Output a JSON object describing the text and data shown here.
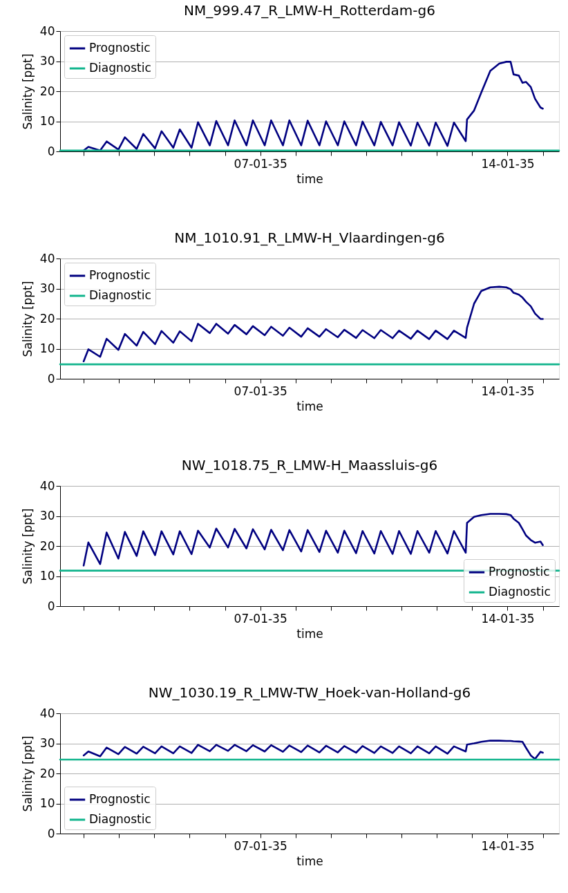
{
  "chart_data": [
    {
      "type": "line",
      "title": "NM_999.47_R_LMW-H_Rotterdam-g6",
      "xlabel": "time",
      "ylabel": "Salinity [ppt]",
      "xlim": [
        "2035-01-01T08:00",
        "2035-01-15T11:00"
      ],
      "xticks": [
        {
          "value": "2035-01-02",
          "label": null
        },
        {
          "value": "2035-01-03",
          "label": null
        },
        {
          "value": "2035-01-04",
          "label": null
        },
        {
          "value": "2035-01-05",
          "label": null
        },
        {
          "value": "2035-01-06",
          "label": null
        },
        {
          "value": "2035-01-07",
          "label": "07-01-35"
        },
        {
          "value": "2035-01-08",
          "label": null
        },
        {
          "value": "2035-01-09",
          "label": null
        },
        {
          "value": "2035-01-10",
          "label": null
        },
        {
          "value": "2035-01-11",
          "label": null
        },
        {
          "value": "2035-01-12",
          "label": null
        },
        {
          "value": "2035-01-13",
          "label": null
        },
        {
          "value": "2035-01-14",
          "label": "14-01-35"
        },
        {
          "value": "2035-01-15",
          "label": null
        }
      ],
      "ylim": [
        0,
        40
      ],
      "yticks": [
        0,
        10,
        20,
        30,
        40
      ],
      "grid": "y",
      "legend": "top left",
      "x": [
        "2035-01-02T00:00",
        "2035-01-02T03:12",
        "2035-01-02T11:12",
        "2035-01-02T15:36",
        "2035-01-02T23:36",
        "2035-01-03T04:00",
        "2035-01-03T12:00",
        "2035-01-03T16:30",
        "2035-01-04T00:30",
        "2035-01-04T04:54",
        "2035-01-04T12:54",
        "2035-01-04T17:18",
        "2035-01-05T01:18",
        "2035-01-05T05:42",
        "2035-01-05T13:42",
        "2035-01-05T18:06",
        "2035-01-06T02:06",
        "2035-01-06T06:36",
        "2035-01-06T14:36",
        "2035-01-06T19:00",
        "2035-01-07T03:00",
        "2035-01-07T07:24",
        "2035-01-07T15:24",
        "2035-01-07T19:48",
        "2035-01-08T03:48",
        "2035-01-08T08:12",
        "2035-01-08T16:12",
        "2035-01-08T20:42",
        "2035-01-09T04:42",
        "2035-01-09T09:06",
        "2035-01-09T17:06",
        "2035-01-09T21:30",
        "2035-01-10T05:30",
        "2035-01-10T09:54",
        "2035-01-10T17:54",
        "2035-01-10T22:18",
        "2035-01-11T06:18",
        "2035-01-11T10:48",
        "2035-01-11T18:48",
        "2035-01-11T23:12",
        "2035-01-12T07:12",
        "2035-01-12T11:36",
        "2035-01-12T19:36",
        "2035-01-12T20:30",
        "2035-01-13T01:18",
        "2035-01-13T06:12",
        "2035-01-13T12:18",
        "2035-01-13T18:24",
        "2035-01-13T23:12",
        "2035-01-14T02:06",
        "2035-01-14T04:06",
        "2035-01-14T07:42",
        "2035-01-14T10:12",
        "2035-01-14T12:36",
        "2035-01-14T15:48",
        "2035-01-14T18:42",
        "2035-01-14T22:24",
        "2035-01-15T00:00"
      ],
      "series": [
        {
          "name": "Prognostic",
          "color": "#000080",
          "values": [
            0.3,
            1.5,
            0.3,
            3.3,
            0.6,
            4.7,
            0.8,
            5.8,
            1.0,
            6.7,
            1.2,
            7.3,
            1.2,
            9.7,
            2.0,
            10.1,
            2.0,
            10.3,
            2.0,
            10.3,
            2.0,
            10.3,
            2.0,
            10.3,
            2.0,
            10.2,
            2.0,
            10.0,
            2.0,
            10.0,
            2.0,
            9.9,
            2.0,
            9.8,
            2.0,
            9.7,
            1.9,
            9.6,
            1.9,
            9.6,
            1.8,
            9.6,
            3.4,
            10.6,
            13.6,
            19.6,
            26.8,
            29.2,
            29.8,
            29.8,
            25.6,
            25.2,
            22.8,
            23.1,
            21.4,
            17.5,
            14.6,
            14.2
          ]
        },
        {
          "name": "Diagnostic",
          "color": "#10b48c",
          "x": [
            "2035-01-01T08:00",
            "2035-01-15T11:00"
          ],
          "values": [
            0.3,
            0.3
          ]
        }
      ]
    },
    {
      "type": "line",
      "title": "NM_1010.91_R_LMW-H_Vlaardingen-g6",
      "xlabel": "time",
      "ylabel": "Salinity [ppt]",
      "xlim": [
        "2035-01-01T08:00",
        "2035-01-15T11:00"
      ],
      "xticks": [
        {
          "value": "2035-01-02",
          "label": null
        },
        {
          "value": "2035-01-03",
          "label": null
        },
        {
          "value": "2035-01-04",
          "label": null
        },
        {
          "value": "2035-01-05",
          "label": null
        },
        {
          "value": "2035-01-06",
          "label": null
        },
        {
          "value": "2035-01-07",
          "label": "07-01-35"
        },
        {
          "value": "2035-01-08",
          "label": null
        },
        {
          "value": "2035-01-09",
          "label": null
        },
        {
          "value": "2035-01-10",
          "label": null
        },
        {
          "value": "2035-01-11",
          "label": null
        },
        {
          "value": "2035-01-12",
          "label": null
        },
        {
          "value": "2035-01-13",
          "label": null
        },
        {
          "value": "2035-01-14",
          "label": "14-01-35"
        },
        {
          "value": "2035-01-15",
          "label": null
        }
      ],
      "ylim": [
        0,
        40
      ],
      "yticks": [
        0,
        10,
        20,
        30,
        40
      ],
      "grid": "y",
      "legend": "top left",
      "x": [
        "2035-01-02T00:00",
        "2035-01-02T03:12",
        "2035-01-02T11:12",
        "2035-01-02T15:36",
        "2035-01-02T23:36",
        "2035-01-03T04:00",
        "2035-01-03T12:00",
        "2035-01-03T16:30",
        "2035-01-04T00:30",
        "2035-01-04T04:54",
        "2035-01-04T12:54",
        "2035-01-04T17:18",
        "2035-01-05T01:18",
        "2035-01-05T05:42",
        "2035-01-05T13:42",
        "2035-01-05T18:06",
        "2035-01-06T02:06",
        "2035-01-06T06:36",
        "2035-01-06T14:36",
        "2035-01-06T19:00",
        "2035-01-07T03:00",
        "2035-01-07T07:24",
        "2035-01-07T15:24",
        "2035-01-07T19:48",
        "2035-01-08T03:48",
        "2035-01-08T08:12",
        "2035-01-08T16:12",
        "2035-01-08T20:42",
        "2035-01-09T04:42",
        "2035-01-09T09:06",
        "2035-01-09T17:06",
        "2035-01-09T21:30",
        "2035-01-10T05:30",
        "2035-01-10T09:54",
        "2035-01-10T17:54",
        "2035-01-10T22:18",
        "2035-01-11T06:18",
        "2035-01-11T10:48",
        "2035-01-11T18:48",
        "2035-01-11T23:12",
        "2035-01-12T07:12",
        "2035-01-12T11:36",
        "2035-01-12T19:36",
        "2035-01-12T20:30",
        "2035-01-13T01:18",
        "2035-01-13T06:12",
        "2035-01-13T12:18",
        "2035-01-13T18:24",
        "2035-01-13T23:12",
        "2035-01-14T02:06",
        "2035-01-14T04:06",
        "2035-01-14T07:42",
        "2035-01-14T10:12",
        "2035-01-14T12:36",
        "2035-01-14T15:48",
        "2035-01-14T18:42",
        "2035-01-14T22:24",
        "2035-01-15T00:00"
      ],
      "series": [
        {
          "name": "Prognostic",
          "color": "#000080",
          "values": [
            5.8,
            9.8,
            7.3,
            13.3,
            9.6,
            14.9,
            11.0,
            15.6,
            11.5,
            15.9,
            12.0,
            15.8,
            12.5,
            18.3,
            15.2,
            18.3,
            15.0,
            17.9,
            14.8,
            17.5,
            14.5,
            17.3,
            14.3,
            17.0,
            14.0,
            16.8,
            14.0,
            16.5,
            13.8,
            16.3,
            13.6,
            16.2,
            13.5,
            16.2,
            13.5,
            16.0,
            13.3,
            16.0,
            13.2,
            16.0,
            13.2,
            16.0,
            13.6,
            17.0,
            25.0,
            29.2,
            30.4,
            30.6,
            30.4,
            29.8,
            28.6,
            28.0,
            27.0,
            25.6,
            24.1,
            21.7,
            19.9,
            19.9
          ]
        },
        {
          "name": "Diagnostic",
          "color": "#10b48c",
          "x": [
            "2035-01-01T08:00",
            "2035-01-15T11:00"
          ],
          "values": [
            4.8,
            4.8
          ]
        }
      ]
    },
    {
      "type": "line",
      "title": "NW_1018.75_R_LMW-H_Maassluis-g6",
      "xlabel": "time",
      "ylabel": "Salinity [ppt]",
      "xlim": [
        "2035-01-01T08:00",
        "2035-01-15T11:00"
      ],
      "xticks": [
        {
          "value": "2035-01-02",
          "label": null
        },
        {
          "value": "2035-01-03",
          "label": null
        },
        {
          "value": "2035-01-04",
          "label": null
        },
        {
          "value": "2035-01-05",
          "label": null
        },
        {
          "value": "2035-01-06",
          "label": null
        },
        {
          "value": "2035-01-07",
          "label": "07-01-35"
        },
        {
          "value": "2035-01-08",
          "label": null
        },
        {
          "value": "2035-01-09",
          "label": null
        },
        {
          "value": "2035-01-10",
          "label": null
        },
        {
          "value": "2035-01-11",
          "label": null
        },
        {
          "value": "2035-01-12",
          "label": null
        },
        {
          "value": "2035-01-13",
          "label": null
        },
        {
          "value": "2035-01-14",
          "label": "14-01-35"
        },
        {
          "value": "2035-01-15",
          "label": null
        }
      ],
      "ylim": [
        0,
        40
      ],
      "yticks": [
        0,
        10,
        20,
        30,
        40
      ],
      "grid": "y",
      "legend": "bottom right",
      "x": [
        "2035-01-02T00:00",
        "2035-01-02T03:12",
        "2035-01-02T11:12",
        "2035-01-02T15:36",
        "2035-01-02T23:36",
        "2035-01-03T04:00",
        "2035-01-03T12:00",
        "2035-01-03T16:30",
        "2035-01-04T00:30",
        "2035-01-04T04:54",
        "2035-01-04T12:54",
        "2035-01-04T17:18",
        "2035-01-05T01:18",
        "2035-01-05T05:42",
        "2035-01-05T13:42",
        "2035-01-05T18:06",
        "2035-01-06T02:06",
        "2035-01-06T06:36",
        "2035-01-06T14:36",
        "2035-01-06T19:00",
        "2035-01-07T03:00",
        "2035-01-07T07:24",
        "2035-01-07T15:24",
        "2035-01-07T19:48",
        "2035-01-08T03:48",
        "2035-01-08T08:12",
        "2035-01-08T16:12",
        "2035-01-08T20:42",
        "2035-01-09T04:42",
        "2035-01-09T09:06",
        "2035-01-09T17:06",
        "2035-01-09T21:30",
        "2035-01-10T05:30",
        "2035-01-10T09:54",
        "2035-01-10T17:54",
        "2035-01-10T22:18",
        "2035-01-11T06:18",
        "2035-01-11T10:48",
        "2035-01-11T18:48",
        "2035-01-11T23:12",
        "2035-01-12T07:12",
        "2035-01-12T11:36",
        "2035-01-12T19:36",
        "2035-01-12T20:30",
        "2035-01-13T01:18",
        "2035-01-13T06:12",
        "2035-01-13T12:18",
        "2035-01-13T18:24",
        "2035-01-13T23:12",
        "2035-01-14T02:06",
        "2035-01-14T04:06",
        "2035-01-14T07:42",
        "2035-01-14T10:12",
        "2035-01-14T12:36",
        "2035-01-14T15:48",
        "2035-01-14T18:42",
        "2035-01-14T22:24",
        "2035-01-15T00:00"
      ],
      "series": [
        {
          "name": "Prognostic",
          "color": "#000080",
          "values": [
            13.5,
            21.2,
            14.0,
            24.5,
            15.8,
            24.7,
            16.7,
            24.9,
            17.0,
            24.9,
            17.2,
            24.9,
            17.3,
            25.1,
            19.5,
            25.8,
            19.5,
            25.7,
            19.2,
            25.6,
            18.9,
            25.4,
            18.6,
            25.3,
            18.2,
            25.3,
            18.0,
            25.1,
            17.8,
            25.1,
            17.6,
            25.0,
            17.5,
            25.0,
            17.4,
            25.0,
            17.4,
            25.0,
            17.8,
            25.0,
            17.5,
            25.0,
            17.8,
            27.7,
            29.7,
            30.3,
            30.7,
            30.7,
            30.6,
            30.3,
            29.1,
            27.7,
            25.6,
            23.5,
            22.0,
            21.1,
            21.5,
            20.3
          ]
        },
        {
          "name": "Diagnostic",
          "color": "#10b48c",
          "x": [
            "2035-01-01T08:00",
            "2035-01-15T11:00"
          ],
          "values": [
            11.8,
            11.8
          ]
        }
      ]
    },
    {
      "type": "line",
      "title": "NW_1030.19_R_LMW-TW_Hoek-van-Holland-g6",
      "xlabel": "time",
      "ylabel": "Salinity [ppt]",
      "xlim": [
        "2035-01-01T08:00",
        "2035-01-15T11:00"
      ],
      "xticks": [
        {
          "value": "2035-01-02",
          "label": null
        },
        {
          "value": "2035-01-03",
          "label": null
        },
        {
          "value": "2035-01-04",
          "label": null
        },
        {
          "value": "2035-01-05",
          "label": null
        },
        {
          "value": "2035-01-06",
          "label": null
        },
        {
          "value": "2035-01-07",
          "label": "07-01-35"
        },
        {
          "value": "2035-01-08",
          "label": null
        },
        {
          "value": "2035-01-09",
          "label": null
        },
        {
          "value": "2035-01-10",
          "label": null
        },
        {
          "value": "2035-01-11",
          "label": null
        },
        {
          "value": "2035-01-12",
          "label": null
        },
        {
          "value": "2035-01-13",
          "label": null
        },
        {
          "value": "2035-01-14",
          "label": "14-01-35"
        },
        {
          "value": "2035-01-15",
          "label": null
        }
      ],
      "ylim": [
        0,
        40
      ],
      "yticks": [
        0,
        10,
        20,
        30,
        40
      ],
      "grid": "y",
      "legend": "bottom left",
      "x": [
        "2035-01-02T00:00",
        "2035-01-02T03:12",
        "2035-01-02T11:12",
        "2035-01-02T15:36",
        "2035-01-02T23:36",
        "2035-01-03T04:00",
        "2035-01-03T12:00",
        "2035-01-03T16:30",
        "2035-01-04T00:30",
        "2035-01-04T04:54",
        "2035-01-04T12:54",
        "2035-01-04T17:18",
        "2035-01-05T01:18",
        "2035-01-05T05:42",
        "2035-01-05T13:42",
        "2035-01-05T18:06",
        "2035-01-06T02:06",
        "2035-01-06T06:36",
        "2035-01-06T14:36",
        "2035-01-06T19:00",
        "2035-01-07T03:00",
        "2035-01-07T07:24",
        "2035-01-07T15:24",
        "2035-01-07T19:48",
        "2035-01-08T03:48",
        "2035-01-08T08:12",
        "2035-01-08T16:12",
        "2035-01-08T20:42",
        "2035-01-09T04:42",
        "2035-01-09T09:06",
        "2035-01-09T17:06",
        "2035-01-09T21:30",
        "2035-01-10T05:30",
        "2035-01-10T09:54",
        "2035-01-10T17:54",
        "2035-01-10T22:18",
        "2035-01-11T06:18",
        "2035-01-11T10:48",
        "2035-01-11T18:48",
        "2035-01-11T23:12",
        "2035-01-12T07:12",
        "2035-01-12T11:36",
        "2035-01-12T19:36",
        "2035-01-12T20:30",
        "2035-01-13T01:18",
        "2035-01-13T06:12",
        "2035-01-13T12:18",
        "2035-01-13T18:24",
        "2035-01-13T23:12",
        "2035-01-14T02:06",
        "2035-01-14T04:06",
        "2035-01-14T07:42",
        "2035-01-14T10:12",
        "2035-01-14T12:36",
        "2035-01-14T15:48",
        "2035-01-14T18:42",
        "2035-01-14T22:24",
        "2035-01-15T00:00"
      ],
      "series": [
        {
          "name": "Prognostic",
          "color": "#000080",
          "values": [
            26.0,
            27.3,
            25.7,
            28.6,
            26.4,
            28.8,
            26.6,
            28.9,
            26.7,
            29.0,
            26.7,
            29.0,
            26.8,
            29.5,
            27.4,
            29.5,
            27.5,
            29.5,
            27.4,
            29.4,
            27.3,
            29.4,
            27.2,
            29.3,
            27.1,
            29.3,
            27.0,
            29.2,
            27.0,
            29.1,
            26.9,
            29.1,
            26.8,
            29.0,
            26.8,
            29.0,
            26.7,
            29.0,
            26.7,
            29.0,
            26.6,
            29.0,
            27.3,
            29.6,
            30.0,
            30.5,
            30.9,
            30.9,
            30.8,
            30.8,
            30.7,
            30.6,
            30.5,
            28.5,
            26.0,
            24.8,
            27.2,
            26.9
          ]
        },
        {
          "name": "Diagnostic",
          "color": "#10b48c",
          "x": [
            "2035-01-01T08:00",
            "2035-01-15T11:00"
          ],
          "values": [
            24.6,
            24.6
          ]
        }
      ]
    }
  ]
}
